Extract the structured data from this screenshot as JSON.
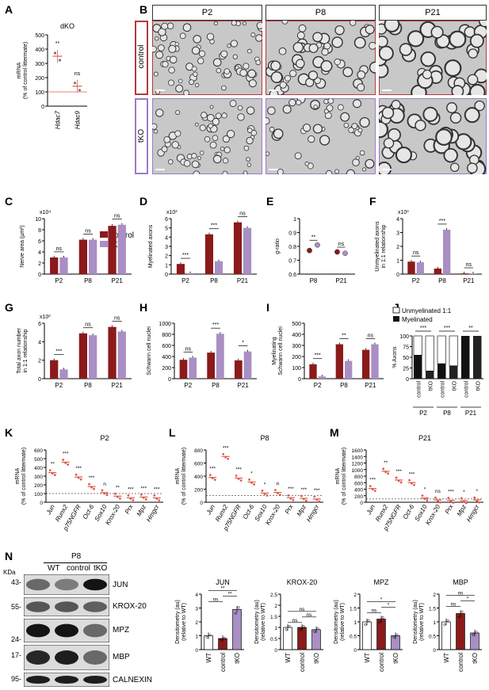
{
  "panel_labels": [
    "A",
    "B",
    "C",
    "D",
    "E",
    "F",
    "G",
    "H",
    "I",
    "J",
    "K",
    "L",
    "M",
    "N"
  ],
  "colors": {
    "control": "#8b1a1a",
    "tko": "#a98fc4",
    "ctrl_border": "#b33a3a",
    "tko_border": "#9b7cc3",
    "red_dot": "#e05a4a"
  },
  "micrographs": {
    "timepoints": [
      "P2",
      "P8",
      "P21"
    ],
    "rows": [
      "control",
      "tKO"
    ]
  },
  "legend": {
    "control": "control",
    "tko": "tKO"
  },
  "J_legend": {
    "unmyelinated": "Unmyelinated 1:1",
    "myelinated": "Myelinated"
  },
  "western": {
    "header": "P8",
    "lanes": [
      "WT",
      "control",
      "tKO"
    ],
    "kda_label": "KDa",
    "markers": [
      "43-",
      "55-",
      "24-",
      "17-",
      "95-"
    ],
    "bands": [
      "JUN",
      "KROX-20",
      "MPZ",
      "MBP",
      "CALNEXIN"
    ]
  },
  "chart_data": [
    {
      "panel": "A",
      "type": "scatter",
      "title": "dKO",
      "ylabel": "mRNA (% of control littermate)",
      "categories": [
        "Hdac7",
        "Hdac9"
      ],
      "values": [
        350,
        140
      ],
      "ylim": [
        0,
        500
      ],
      "yticks": [
        0,
        100,
        200,
        300,
        400,
        500
      ],
      "sig": [
        "**",
        "ns"
      ]
    },
    {
      "panel": "C",
      "type": "bar",
      "ylabel": "Nerve area (µm²)",
      "scale": "x10⁴",
      "categories": [
        "P2",
        "P8",
        "P21"
      ],
      "series": [
        {
          "name": "control",
          "values": [
            3.0,
            6.2,
            8.7
          ]
        },
        {
          "name": "tKO",
          "values": [
            3.0,
            6.2,
            8.9
          ]
        }
      ],
      "ylim": [
        0,
        10
      ],
      "yticks": [
        0,
        2,
        4,
        6,
        8,
        10
      ],
      "sig": [
        "ns",
        "ns",
        "ns"
      ]
    },
    {
      "panel": "D",
      "type": "bar",
      "ylabel": "Myelinated axons",
      "scale": "x10³",
      "categories": [
        "P2",
        "P8",
        "P21"
      ],
      "series": [
        {
          "name": "control",
          "values": [
            1.1,
            4.3,
            5.6
          ]
        },
        {
          "name": "tKO",
          "values": [
            0.1,
            1.4,
            5.0
          ]
        }
      ],
      "ylim": [
        0,
        6
      ],
      "yticks": [
        0,
        1,
        2,
        3,
        4,
        5,
        6
      ],
      "sig": [
        "***",
        "***",
        "ns"
      ]
    },
    {
      "panel": "E",
      "type": "scatter",
      "ylabel": "g-ratio",
      "categories": [
        "P8",
        "P21"
      ],
      "series": [
        {
          "name": "control",
          "values": [
            0.77,
            0.76
          ]
        },
        {
          "name": "tKO",
          "values": [
            0.81,
            0.75
          ]
        }
      ],
      "ylim": [
        0.6,
        1.0
      ],
      "yticks": [
        0.6,
        0.7,
        0.8,
        0.9,
        1.0
      ],
      "sig": [
        "**",
        "ns"
      ]
    },
    {
      "panel": "F",
      "type": "bar",
      "ylabel": "Unmyelinated axons in 1:1 relationship",
      "scale": "x10³",
      "categories": [
        "P2",
        "P8",
        "P21"
      ],
      "series": [
        {
          "name": "control",
          "values": [
            0.9,
            0.4,
            0.05
          ]
        },
        {
          "name": "tKO",
          "values": [
            0.85,
            3.2,
            0.05
          ]
        }
      ],
      "ylim": [
        0,
        4
      ],
      "yticks": [
        0,
        1,
        2,
        3,
        4
      ],
      "sig": [
        "ns",
        "***",
        "ns"
      ]
    },
    {
      "panel": "G",
      "type": "bar",
      "ylabel": "Total axon number in 1:1 relationship",
      "scale": "x10³",
      "categories": [
        "P2",
        "P8",
        "P21"
      ],
      "series": [
        {
          "name": "control",
          "values": [
            2.0,
            4.9,
            5.6
          ]
        },
        {
          "name": "tKO",
          "values": [
            1.0,
            4.7,
            5.1
          ]
        }
      ],
      "ylim": [
        0,
        6
      ],
      "yticks": [
        0,
        2,
        4,
        6
      ],
      "sig": [
        "***",
        "ns",
        "ns"
      ]
    },
    {
      "panel": "H",
      "type": "bar",
      "ylabel": "Schwann cell nuclei",
      "categories": [
        "P2",
        "P8",
        "P21"
      ],
      "series": [
        {
          "name": "control",
          "values": [
            340,
            470,
            330
          ]
        },
        {
          "name": "tKO",
          "values": [
            380,
            810,
            490
          ]
        }
      ],
      "ylim": [
        0,
        1000
      ],
      "yticks": [
        0,
        200,
        400,
        600,
        800,
        1000
      ],
      "sig": [
        "ns",
        "***",
        "*"
      ]
    },
    {
      "panel": "I",
      "type": "bar",
      "ylabel": "Myelinating Schwann cell nuclei",
      "categories": [
        "P2",
        "P8",
        "P21"
      ],
      "series": [
        {
          "name": "control",
          "values": [
            130,
            310,
            260
          ]
        },
        {
          "name": "tKO",
          "values": [
            20,
            160,
            310
          ]
        }
      ],
      "ylim": [
        0,
        500
      ],
      "yticks": [
        0,
        100,
        200,
        300,
        400,
        500
      ],
      "sig": [
        "***",
        "**",
        "ns"
      ]
    },
    {
      "panel": "J",
      "type": "bar",
      "ylabel": "% Axons",
      "categories": [
        "control",
        "tKO",
        "control",
        "tKO",
        "control",
        "tKO"
      ],
      "groups": [
        "P2",
        "P8",
        "P21"
      ],
      "series": [
        {
          "name": "Myelinated",
          "values": [
            55,
            18,
            35,
            30,
            100,
            100
          ]
        },
        {
          "name": "Unmyelinated 1:1",
          "values": [
            45,
            82,
            65,
            70,
            0,
            0
          ]
        }
      ],
      "ylim": [
        0,
        100
      ],
      "yticks": [
        0,
        25,
        50,
        75,
        100
      ],
      "sig": [
        "***",
        "***",
        "**"
      ]
    },
    {
      "panel": "K",
      "type": "scatter",
      "title": "P2",
      "ylabel": "mRNA (% of control littermate)",
      "categories": [
        "Jun",
        "Runx2",
        "p75NGFR",
        "Oct-6",
        "Sox10",
        "Krox-20",
        "Prx",
        "Mpz",
        "Hmgcr"
      ],
      "values": [
        340,
        460,
        290,
        180,
        110,
        70,
        50,
        60,
        50
      ],
      "ylim": [
        0,
        600
      ],
      "yticks": [
        0,
        100,
        200,
        300,
        400,
        500,
        600
      ],
      "sig": [
        "**",
        "***",
        "***",
        "***",
        "n",
        "**",
        "***",
        "***",
        "***"
      ]
    },
    {
      "panel": "L",
      "type": "scatter",
      "title": "P8",
      "ylabel": "mRNA (% of control littermate)",
      "categories": [
        "Jun",
        "Runx2",
        "p75NGFR",
        "Oct-6",
        "Sox10",
        "Krox-20",
        "Prx",
        "Mpz",
        "Hmgcr"
      ],
      "values": [
        380,
        700,
        370,
        310,
        140,
        150,
        70,
        60,
        50
      ],
      "ylim": [
        0,
        800
      ],
      "yticks": [
        0,
        200,
        400,
        600,
        800
      ],
      "sig": [
        "***",
        "***",
        "***",
        "*",
        "*",
        "n",
        "***",
        "***",
        "***"
      ]
    },
    {
      "panel": "M",
      "type": "scatter",
      "title": "P21",
      "ylabel": "mRNA (% of control littermate)",
      "categories": [
        "Jun",
        "Runx2",
        "p75NGFR",
        "Oct-6",
        "Sox10",
        "Krox-20",
        "Prx",
        "Mpz",
        "Hmgcr"
      ],
      "values": [
        420,
        950,
        680,
        600,
        130,
        70,
        60,
        50,
        70
      ],
      "ylim": [
        0,
        1600
      ],
      "yticks": [
        0,
        200,
        400,
        600,
        800,
        1000,
        1200,
        1400,
        1600
      ],
      "sig": [
        "***",
        "**",
        "***",
        "***",
        "*",
        "ns",
        "***",
        "*",
        "*"
      ]
    },
    {
      "panel": "N-JUN",
      "type": "bar",
      "title": "JUN",
      "ylabel": "Densitometry (au) (relative to WT)",
      "categories": [
        "WT",
        "control",
        "tKO"
      ],
      "values": [
        1.0,
        0.8,
        2.9
      ],
      "ylim": [
        0,
        4
      ],
      "yticks": [
        0,
        1,
        2,
        3,
        4
      ],
      "sig": [
        "ns",
        "**",
        "**"
      ]
    },
    {
      "panel": "N-KROX-20",
      "type": "bar",
      "title": "KROX-20",
      "ylabel": "Densitometry (au) (relative to WT)",
      "categories": [
        "WT",
        "control",
        "tKO"
      ],
      "values": [
        1.0,
        1.0,
        0.9
      ],
      "ylim": [
        0,
        2.5
      ],
      "yticks": [
        0,
        0.5,
        1.0,
        1.5,
        2.0,
        2.5
      ],
      "sig": [
        "ns",
        "ns",
        "ns"
      ]
    },
    {
      "panel": "N-MPZ",
      "type": "bar",
      "title": "MPZ",
      "ylabel": "Densitometry (au) (relative to WT)",
      "categories": [
        "WT",
        "control",
        "tKO"
      ],
      "values": [
        1.0,
        1.1,
        0.5
      ],
      "ylim": [
        0,
        2.0
      ],
      "yticks": [
        0,
        0.5,
        1.0,
        1.5,
        2.0
      ],
      "sig": [
        "ns",
        "*",
        "*"
      ]
    },
    {
      "panel": "N-MBP",
      "type": "bar",
      "title": "MBP",
      "ylabel": "Densitometry (au) (relative to WT)",
      "categories": [
        "WT",
        "control",
        "tKO"
      ],
      "values": [
        1.0,
        1.3,
        0.6
      ],
      "ylim": [
        0,
        2.0
      ],
      "yticks": [
        0,
        0.5,
        1.0,
        1.5,
        2.0
      ],
      "sig": [
        "ns",
        "*",
        "ns"
      ]
    }
  ]
}
